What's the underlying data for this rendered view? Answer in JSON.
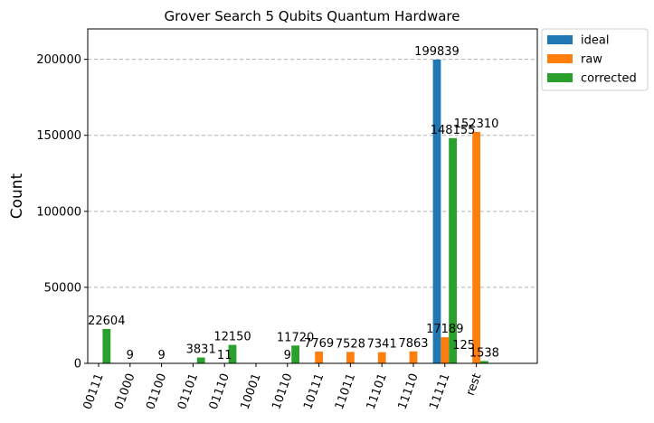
{
  "chart_data": {
    "type": "bar",
    "title": "Grover Search 5 Qubits Quantum Hardware",
    "xlabel": "",
    "ylabel": "Count",
    "ylim": [
      0,
      220000
    ],
    "yticks": [
      "0",
      "50000",
      "100000",
      "150000",
      "200000"
    ],
    "grid": "y-dashed",
    "legend_position": "outside-top-right",
    "categories": [
      "00111",
      "01000",
      "01100",
      "01101",
      "01110",
      "10001",
      "10110",
      "10111",
      "11011",
      "11101",
      "11110",
      "11111",
      "rest"
    ],
    "series": [
      {
        "name": "ideal",
        "color": "#1f77b4",
        "values": [
          null,
          null,
          null,
          null,
          null,
          null,
          null,
          null,
          null,
          null,
          null,
          199839,
          null
        ],
        "labels": [
          "",
          "",
          "",
          "",
          "",
          "",
          "",
          "",
          "",
          "",
          "",
          "199839",
          ""
        ]
      },
      {
        "name": "raw",
        "color": "#ff7f0e",
        "values": [
          null,
          9,
          9,
          null,
          11,
          null,
          9,
          7769,
          7528,
          7341,
          7863,
          17189,
          152310
        ],
        "labels": [
          "",
          "9",
          "9",
          "",
          "11",
          "",
          "9",
          "7769",
          "7528",
          "7341",
          "7863",
          "17189",
          "152310"
        ]
      },
      {
        "name": "corrected",
        "color": "#2ca02c",
        "values": [
          22604,
          null,
          null,
          3831,
          12150,
          null,
          11720,
          null,
          null,
          null,
          null,
          148155,
          1538
        ],
        "labels": [
          "22604",
          "",
          "",
          "3831",
          "12150",
          "",
          "11720",
          "",
          "",
          "",
          "",
          "148155",
          "1538"
        ]
      }
    ],
    "extra_labels": [
      {
        "category": "rest",
        "series": "raw",
        "text": "125"
      }
    ]
  }
}
